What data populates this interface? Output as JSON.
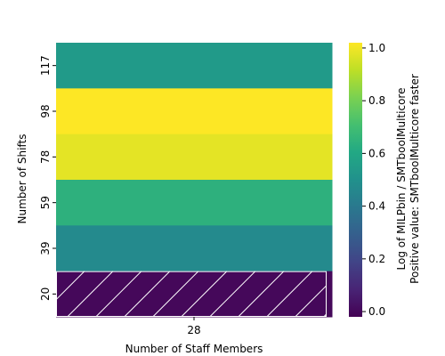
{
  "chart_data": {
    "type": "heatmap",
    "xlabel": "Number of Staff Members",
    "ylabel": "Number of Shifts",
    "x_categories": [
      "28"
    ],
    "y_categories": [
      "117",
      "98",
      "78",
      "59",
      "39",
      "20"
    ],
    "values": [
      [
        0.54
      ],
      [
        1.02
      ],
      [
        0.98
      ],
      [
        0.64
      ],
      [
        0.47
      ],
      [
        0.0
      ]
    ],
    "hatched_cells": [
      {
        "x": "28",
        "y": "20"
      }
    ],
    "colorbar": {
      "label_line1": "Log of MILPbin / SMTboolMulticore",
      "label_line2": "Positive value: SMTboolMulticore faster",
      "range": [
        -0.02,
        1.02
      ],
      "ticks": [
        "0.0",
        "0.2",
        "0.4",
        "0.6",
        "0.8",
        "1.0"
      ],
      "colormap": "viridis"
    }
  }
}
